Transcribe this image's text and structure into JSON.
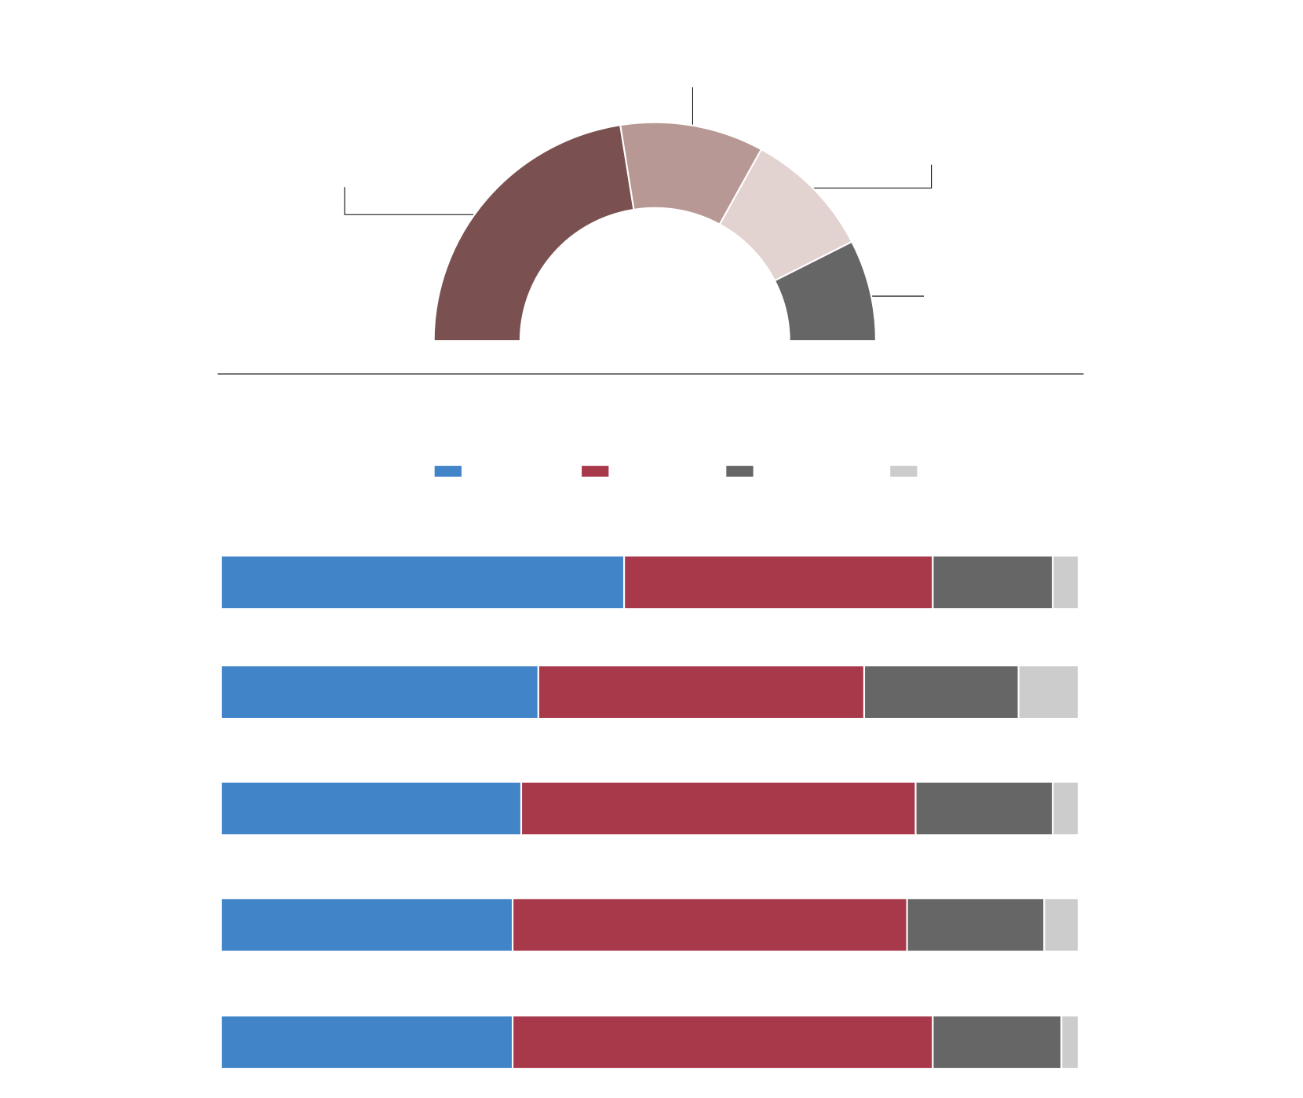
{
  "chart_data": [
    {
      "type": "pie",
      "half": true,
      "values": [
        45,
        21,
        19,
        15
      ],
      "colors": [
        "#7a5150",
        "#b79895",
        "#e2d3d1",
        "#666666"
      ]
    },
    {
      "type": "bar",
      "orientation": "horizontal",
      "stacked": true,
      "categories": [
        null,
        null,
        null,
        null,
        null
      ],
      "xlim": [
        0,
        100
      ],
      "series": [
        {
          "color": "#4184c8",
          "values": [
            47,
            37,
            35,
            34,
            34
          ]
        },
        {
          "color": "#a8394b",
          "values": [
            36,
            38,
            46,
            46,
            49
          ]
        },
        {
          "color": "#666666",
          "values": [
            14,
            18,
            16,
            16,
            15
          ]
        },
        {
          "color": "#cccccc",
          "values": [
            3,
            7,
            3,
            4,
            2
          ]
        }
      ]
    }
  ]
}
